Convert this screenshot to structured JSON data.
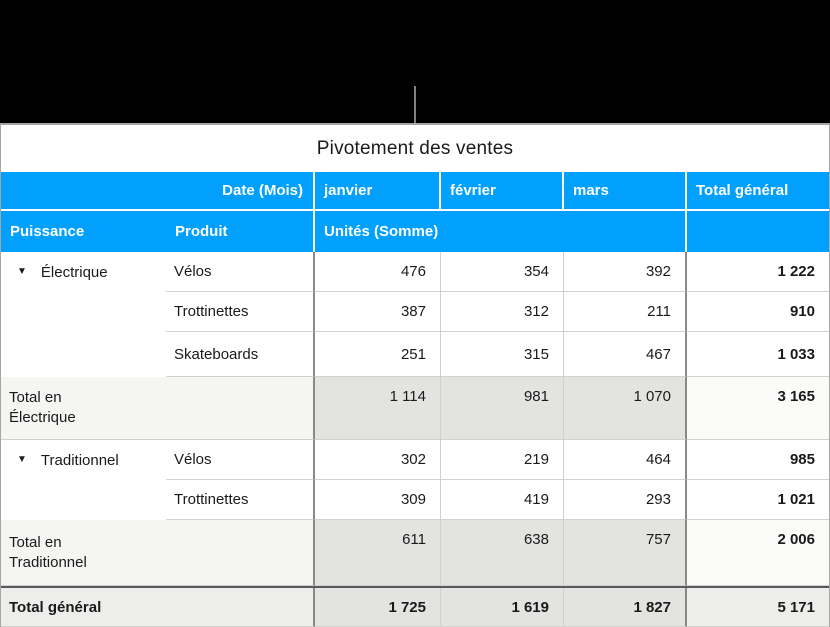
{
  "callout": {
    "description_line": "connector-line"
  },
  "table": {
    "title": "Pivotement des ventes",
    "header_row1": {
      "date_label": "Date (Mois)",
      "months": [
        "janvier",
        "février",
        "mars"
      ],
      "total_label": "Total général"
    },
    "header_row2": {
      "puissance_label": "Puissance",
      "produit_label": "Produit",
      "units_label": "Unités (Somme)"
    },
    "groups": [
      {
        "name": "Électrique",
        "disclosure_icon": "▼",
        "rows": [
          {
            "product": "Vélos",
            "values": [
              "476",
              "354",
              "392"
            ],
            "total": "1 222"
          },
          {
            "product": "Trottinettes",
            "values": [
              "387",
              "312",
              "211"
            ],
            "total": "910"
          },
          {
            "product": "Skateboards",
            "values": [
              "251",
              "315",
              "467"
            ],
            "total": "1 033"
          }
        ],
        "subtotal": {
          "label": "Total en Électrique",
          "values": [
            "1 114",
            "981",
            "1 070"
          ],
          "total": "3 165"
        }
      },
      {
        "name": "Traditionnel",
        "disclosure_icon": "▼",
        "rows": [
          {
            "product": "Vélos",
            "values": [
              "302",
              "219",
              "464"
            ],
            "total": "985"
          },
          {
            "product": "Trottinettes",
            "values": [
              "309",
              "419",
              "293"
            ],
            "total": "1 021"
          }
        ],
        "subtotal": {
          "label": "Total en Traditionnel",
          "values": [
            "611",
            "638",
            "757"
          ],
          "total": "2 006"
        }
      }
    ],
    "grand_total": {
      "label": "Total général",
      "values": [
        "1 725",
        "1 619",
        "1 827"
      ],
      "total": "5 171"
    }
  },
  "colors": {
    "black_area": "#000000",
    "accent_blue": "#00A0FC",
    "header_text": "#FFFFFF",
    "body_text": "#1A1A1A",
    "light_line": "#D2D1D0",
    "dark_line": "#8A8788",
    "heavy_line": "#59585A",
    "outer_border": "#A7A5A4",
    "callout_line": "#808080",
    "subtotal_label_bg": "#F5F5F4",
    "subtotal_value_bg": "#E3E3E1",
    "subtotal_total_bg": "#FBFBFA",
    "grand_label_bg": "#EDEDEB",
    "grand_value_bg": "#E3E3E1",
    "white": "#FFFFFF"
  }
}
